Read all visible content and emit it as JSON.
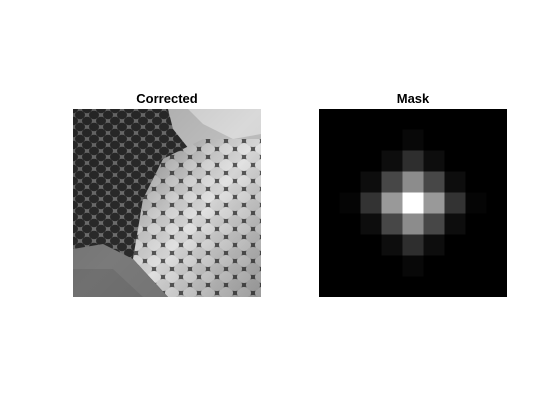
{
  "figure": {
    "background": "#ffffff",
    "panels": [
      {
        "title": "Corrected"
      },
      {
        "title": "Mask"
      }
    ]
  },
  "mask": {
    "grid": 9,
    "levels": [
      [
        0,
        0,
        0,
        0,
        0,
        0,
        0,
        0,
        0
      ],
      [
        0,
        0,
        0,
        0,
        0.03,
        0,
        0,
        0,
        0
      ],
      [
        0,
        0,
        0,
        0.05,
        0.18,
        0.05,
        0,
        0,
        0
      ],
      [
        0,
        0,
        0.05,
        0.28,
        0.55,
        0.28,
        0.05,
        0,
        0
      ],
      [
        0,
        0.02,
        0.2,
        0.6,
        1.0,
        0.6,
        0.2,
        0.02,
        0
      ],
      [
        0,
        0,
        0.05,
        0.28,
        0.55,
        0.28,
        0.05,
        0,
        0
      ],
      [
        0,
        0,
        0,
        0.05,
        0.18,
        0.05,
        0,
        0,
        0
      ],
      [
        0,
        0,
        0,
        0,
        0.03,
        0,
        0,
        0,
        0
      ],
      [
        0,
        0,
        0,
        0,
        0,
        0,
        0,
        0,
        0
      ]
    ]
  }
}
